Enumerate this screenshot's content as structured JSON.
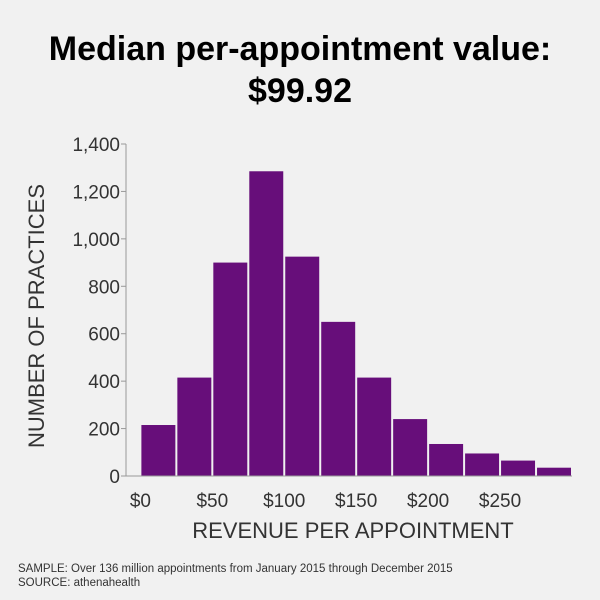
{
  "title_line1": "Median per-appointment value:",
  "title_line2": "$99.92",
  "notes": {
    "sample": "SAMPLE: Over 136 million appointments from January 2015 through December 2015",
    "source": "SOURCE: athenahealth"
  },
  "chart_data": {
    "type": "bar",
    "xlabel": "REVENUE PER APPOINTMENT",
    "ylabel": "NUMBER OF PRACTICES",
    "ylim": [
      0,
      1400
    ],
    "yticks": [
      0,
      200,
      400,
      600,
      800,
      1000,
      1200,
      1400
    ],
    "ytick_labels": [
      "0",
      "200",
      "400",
      "600",
      "800",
      "1,000",
      "1,200",
      "1,400"
    ],
    "xlim": [
      -10,
      300
    ],
    "xticks": [
      0,
      50,
      100,
      150,
      200,
      250
    ],
    "xtick_labels": [
      "$0",
      "$50",
      "$100",
      "$150",
      "$200",
      "$250"
    ],
    "bin_width": 25,
    "bins": [
      0,
      25,
      50,
      75,
      100,
      125,
      150,
      175,
      200,
      225,
      250,
      275
    ],
    "values": [
      215,
      415,
      900,
      1285,
      925,
      650,
      415,
      240,
      135,
      95,
      65,
      35
    ],
    "grid": false,
    "bar_color": "#670e7a",
    "axis_color": "#999999"
  }
}
